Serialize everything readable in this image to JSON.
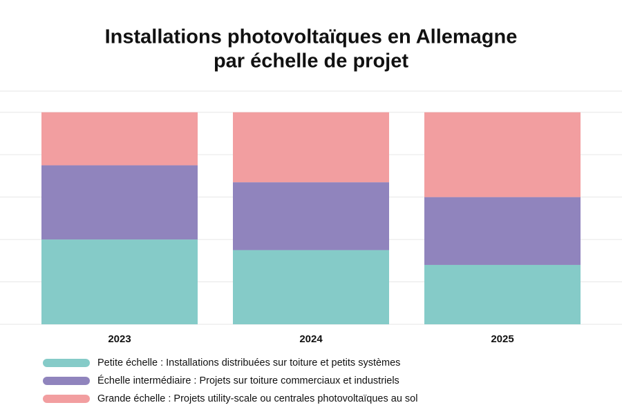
{
  "chart_data": {
    "type": "stacked_bar",
    "title": [
      "Installations photovoltaïques en Allemagne",
      "par échelle de projet"
    ],
    "categories": [
      "2023",
      "2024",
      "2025"
    ],
    "series": [
      {
        "name": "Petite échelle : Installations distribuées sur toiture et petits systèmes",
        "color": "#85cbc8",
        "values": [
          40,
          35,
          28
        ]
      },
      {
        "name": "Échelle intermédiaire : Projets sur toiture commerciaux et industriels",
        "color": "#9084bd",
        "values": [
          35,
          32,
          32
        ]
      },
      {
        "name": "Grande échelle : Projets utility-scale ou centrales photovoltaïques au sol",
        "color": "#f29ea0",
        "values": [
          25,
          33,
          40
        ]
      }
    ],
    "ylim": [
      0,
      110
    ],
    "yticks": [
      0,
      20,
      40,
      60,
      80,
      100
    ],
    "grid": true
  }
}
